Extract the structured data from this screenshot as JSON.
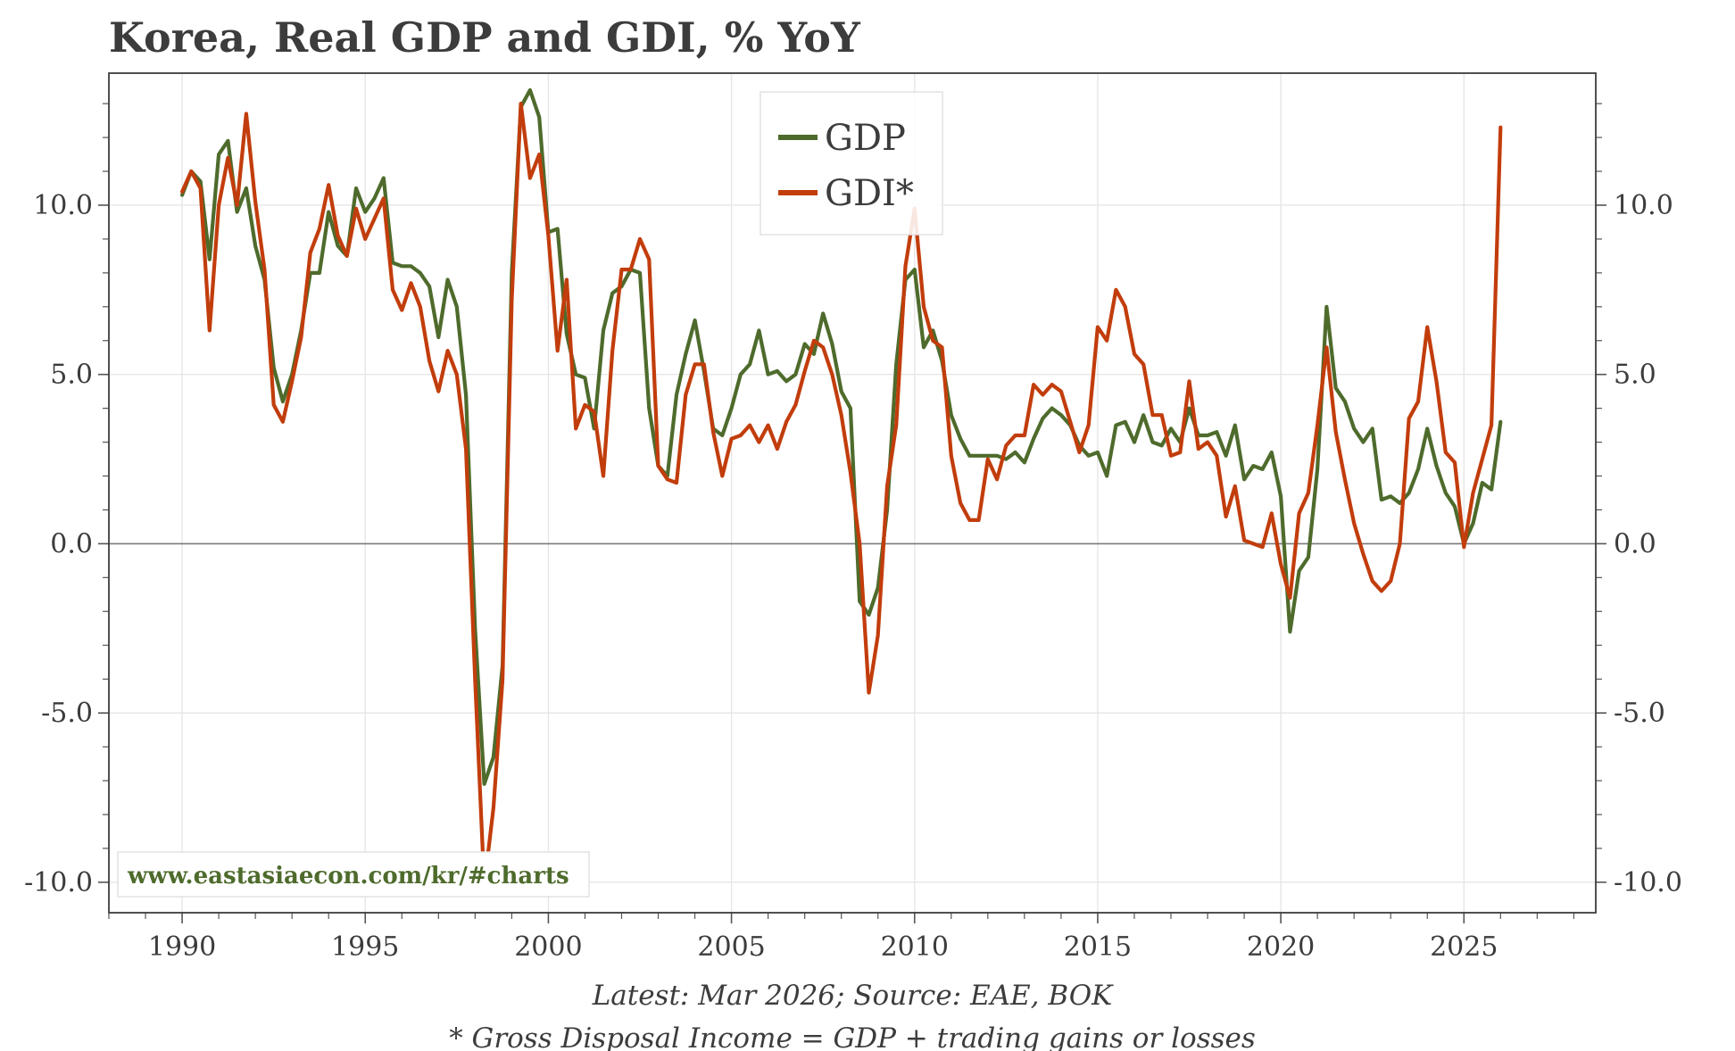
{
  "title": "Korea, Real GDP and GDI, % YoY",
  "footnote_source": "Latest: Mar 2026; Source: EAE, BOK",
  "footnote_def": "* Gross Disposal Income = GDP + trading gains or losses",
  "watermark": "www.eastasiaecon.com/kr/#charts",
  "colors": {
    "gdp": "#4e6b2c",
    "gdi": "#c23d0c",
    "text": "#3c3c3c",
    "watermark": "#4e6b2c"
  },
  "chart_data": {
    "type": "line",
    "title": "Korea, Real GDP and GDI, % YoY",
    "xlabel": "",
    "ylabel": "",
    "x_ticks": [
      "1990",
      "1995",
      "2000",
      "2005",
      "2010",
      "2015",
      "2020",
      "2025"
    ],
    "y_ticks": [
      "10.0",
      "5.0",
      "0.0",
      "-5.0",
      "-10.0"
    ],
    "xlim": [
      1988,
      2028.6
    ],
    "ylim": [
      -10.9,
      13.9
    ],
    "grid": true,
    "legend": "top-center",
    "series": [
      {
        "name": "GDP",
        "x_start": 1990.0,
        "x_step": 0.25,
        "values": [
          10.3,
          11.0,
          10.7,
          8.4,
          11.5,
          11.9,
          9.8,
          10.5,
          8.8,
          7.8,
          5.2,
          4.2,
          5.0,
          6.3,
          8.0,
          8.0,
          9.8,
          8.8,
          8.5,
          10.5,
          9.8,
          10.2,
          10.8,
          8.3,
          8.2,
          8.2,
          8.0,
          7.6,
          6.1,
          7.8,
          7.0,
          4.4,
          -2.5,
          -7.1,
          -6.3,
          -3.6,
          8.0,
          12.9,
          13.4,
          12.6,
          9.2,
          9.3,
          6.2,
          5.0,
          4.9,
          3.4,
          6.3,
          7.4,
          7.6,
          8.1,
          8.0,
          4.0,
          2.3,
          2.0,
          4.4,
          5.6,
          6.6,
          5.1,
          3.4,
          3.2,
          4.0,
          5.0,
          5.3,
          6.3,
          5.0,
          5.1,
          4.8,
          5.0,
          5.9,
          5.6,
          6.8,
          5.9,
          4.5,
          4.0,
          -1.7,
          -2.1,
          -1.3,
          1.0,
          5.3,
          7.8,
          8.1,
          5.8,
          6.3,
          5.4,
          3.8,
          3.1,
          2.6,
          2.6,
          2.6,
          2.6,
          2.5,
          2.7,
          2.4,
          3.1,
          3.7,
          4.0,
          3.8,
          3.5,
          2.9,
          2.6,
          2.7,
          2.0,
          3.5,
          3.6,
          3.0,
          3.8,
          3.0,
          2.9,
          3.4,
          3.0,
          4.0,
          3.2,
          3.2,
          3.3,
          2.6,
          3.5,
          1.9,
          2.3,
          2.2,
          2.7,
          1.4,
          -2.6,
          -0.8,
          -0.4,
          2.2,
          7.0,
          4.6,
          4.2,
          3.4,
          3.0,
          3.4,
          1.3,
          1.4,
          1.2,
          1.5,
          2.2,
          3.4,
          2.3,
          1.5,
          1.1,
          0.0,
          0.6,
          1.8,
          1.6,
          3.6
        ]
      },
      {
        "name": "GDI*",
        "x_start": 1990.0,
        "x_step": 0.25,
        "values": [
          10.4,
          11.0,
          10.5,
          6.3,
          10.0,
          11.4,
          10.0,
          12.7,
          10.1,
          8.1,
          4.1,
          3.6,
          4.8,
          6.1,
          8.6,
          9.3,
          10.6,
          9.1,
          8.5,
          9.9,
          9.0,
          9.6,
          10.2,
          7.5,
          6.9,
          7.7,
          7.0,
          5.4,
          4.5,
          5.7,
          5.0,
          2.8,
          -4.0,
          -10.1,
          -7.8,
          -4.0,
          7.2,
          13.0,
          10.8,
          11.5,
          9.1,
          5.7,
          7.8,
          3.4,
          4.1,
          3.9,
          2.0,
          5.7,
          8.1,
          8.1,
          9.0,
          8.4,
          2.3,
          1.9,
          1.8,
          4.4,
          5.3,
          5.3,
          3.3,
          2.0,
          3.1,
          3.2,
          3.5,
          3.0,
          3.5,
          2.8,
          3.6,
          4.1,
          5.1,
          6.0,
          5.8,
          5.0,
          3.8,
          2.1,
          0.0,
          -4.4,
          -2.7,
          1.7,
          3.5,
          8.2,
          9.9,
          7.0,
          6.0,
          5.8,
          2.6,
          1.2,
          0.7,
          0.7,
          2.5,
          1.9,
          2.9,
          3.2,
          3.2,
          4.7,
          4.4,
          4.7,
          4.5,
          3.6,
          2.7,
          3.5,
          6.4,
          6.0,
          7.5,
          7.0,
          5.6,
          5.3,
          3.8,
          3.8,
          2.6,
          2.7,
          4.8,
          2.8,
          3.0,
          2.6,
          0.8,
          1.7,
          0.1,
          0.0,
          -0.1,
          0.9,
          -0.6,
          -1.6,
          0.9,
          1.5,
          3.5,
          5.8,
          3.3,
          1.9,
          0.6,
          -0.3,
          -1.1,
          -1.4,
          -1.1,
          0.0,
          3.7,
          4.2,
          6.4,
          4.8,
          2.7,
          2.4,
          -0.1,
          1.5,
          2.5,
          3.5,
          12.3
        ]
      }
    ]
  }
}
